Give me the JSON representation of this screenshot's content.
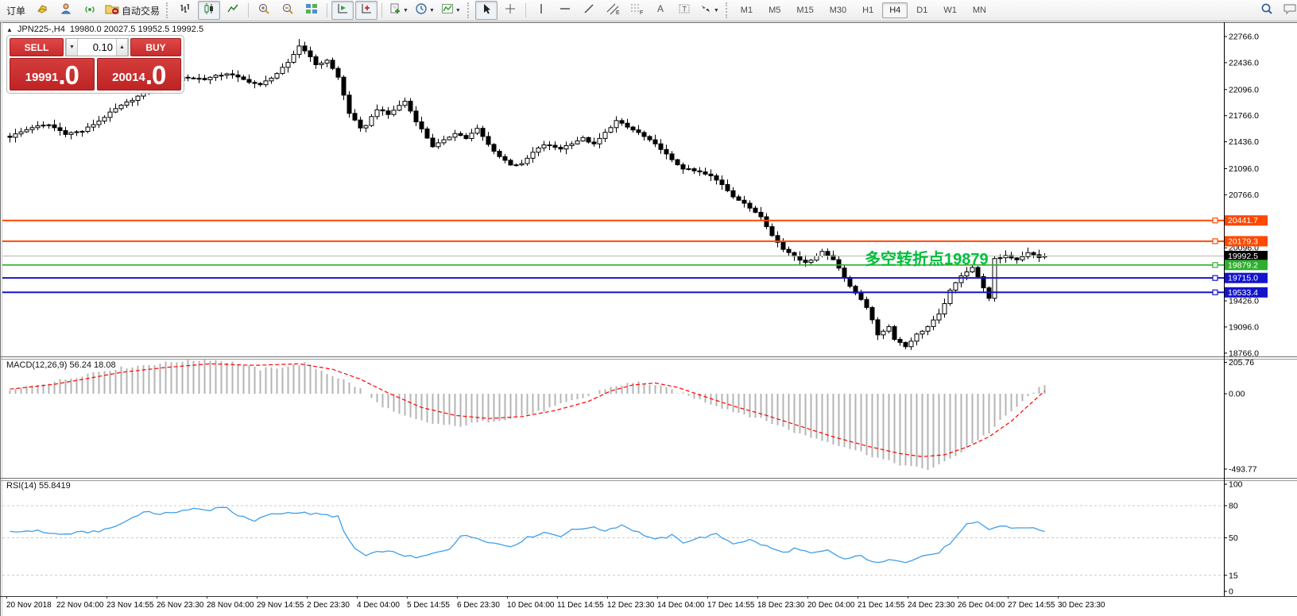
{
  "toolbar": {
    "new_order": "订单",
    "autotrading": "自动交易",
    "timeframes": [
      "M1",
      "M5",
      "M15",
      "M30",
      "H1",
      "H4",
      "D1",
      "W1",
      "MN"
    ],
    "active_timeframe": "H4"
  },
  "chart": {
    "symbol_period": "JPN225-,H4",
    "ohlc_line": "19980.0 20027.5 19952.5 19992.5",
    "macd_label": "MACD(12,26,9) 56.24 18.08",
    "rsi_label": "RSI(14) 55.8419",
    "annotation": {
      "text": "多空转折点19879",
      "color": "#00bf3c"
    }
  },
  "trade_panel": {
    "sell_label": "SELL",
    "buy_label": "BUY",
    "volume": "0.10",
    "sell_price_small": "19991",
    "sell_price_big": ".0",
    "buy_price_small": "20014",
    "buy_price_big": ".0"
  },
  "chart_data": {
    "type": "candlestick",
    "title": "JPN225-,H4",
    "current_bar": {
      "open": 19980.0,
      "high": 20027.5,
      "low": 19952.5,
      "close": 19992.5
    },
    "bid": 19991.0,
    "ask": 20014.0,
    "candle_count": 187,
    "y_ticks": [
      22766.0,
      22436.0,
      22096.0,
      21766.0,
      21436.0,
      21096.0,
      20766.0,
      20096.0,
      19426.0,
      19096.0,
      18766.0
    ],
    "price_lines": [
      {
        "price": 20441.7,
        "label": "20441.7",
        "color": "#ff4800",
        "width": 2,
        "handle": true
      },
      {
        "price": 20179.3,
        "label": "20179.3",
        "color": "#ff4800",
        "width": 2,
        "handle": true
      },
      {
        "price": 19992.5,
        "label": "19992.5",
        "color": "#000000",
        "line_color": "#b8b8b8",
        "width": 1,
        "handle": false
      },
      {
        "price": 19879.2,
        "label": "19879.2",
        "color": "#2fae2f",
        "width": 1.6,
        "handle": true
      },
      {
        "price": 19715.0,
        "label": "19715.0",
        "color": "#1414cc",
        "width": 2,
        "handle": true
      },
      {
        "price": 19533.4,
        "label": "19533.4",
        "color": "#1414cc",
        "width": 2,
        "handle": true
      }
    ],
    "x_labels": [
      "20 Nov 2018",
      "22 Nov 04:00",
      "23 Nov 14:55",
      "26 Nov 23:30",
      "28 Nov 04:00",
      "29 Nov 14:55",
      "2 Dec 23:30",
      "4 Dec 04:00",
      "5 Dec 14:55",
      "6 Dec 23:30",
      "10 Dec 04:00",
      "11 Dec 14:55",
      "12 Dec 23:30",
      "14 Dec 04:00",
      "17 Dec 14:55",
      "18 Dec 23:30",
      "20 Dec 04:00",
      "21 Dec 14:55",
      "24 Dec 23:30",
      "26 Dec 04:00",
      "27 Dec 14:55",
      "30 Dec 23:30"
    ],
    "close_anchors": [
      [
        0,
        21500
      ],
      [
        4,
        21620
      ],
      [
        7,
        21650
      ],
      [
        10,
        21540
      ],
      [
        13,
        21570
      ],
      [
        16,
        21700
      ],
      [
        19,
        21850
      ],
      [
        24,
        22050
      ],
      [
        28,
        22140
      ],
      [
        31,
        22250
      ],
      [
        35,
        22230
      ],
      [
        39,
        22300
      ],
      [
        42,
        22220
      ],
      [
        45,
        22150
      ],
      [
        48,
        22300
      ],
      [
        50,
        22430
      ],
      [
        52,
        22650
      ],
      [
        54,
        22520
      ],
      [
        55,
        22400
      ],
      [
        57,
        22470
      ],
      [
        59,
        22250
      ],
      [
        61,
        21800
      ],
      [
        63,
        21600
      ],
      [
        64,
        21650
      ],
      [
        66,
        21850
      ],
      [
        68,
        21780
      ],
      [
        71,
        21950
      ],
      [
        73,
        21700
      ],
      [
        76,
        21380
      ],
      [
        78,
        21450
      ],
      [
        80,
        21550
      ],
      [
        82,
        21480
      ],
      [
        84,
        21600
      ],
      [
        86,
        21400
      ],
      [
        88,
        21250
      ],
      [
        90,
        21150
      ],
      [
        92,
        21150
      ],
      [
        94,
        21300
      ],
      [
        96,
        21400
      ],
      [
        99,
        21350
      ],
      [
        101,
        21420
      ],
      [
        103,
        21480
      ],
      [
        105,
        21400
      ],
      [
        107,
        21550
      ],
      [
        109,
        21700
      ],
      [
        111,
        21620
      ],
      [
        113,
        21550
      ],
      [
        115,
        21450
      ],
      [
        117,
        21350
      ],
      [
        119,
        21200
      ],
      [
        121,
        21100
      ],
      [
        124,
        21050
      ],
      [
        126,
        21000
      ],
      [
        128,
        20900
      ],
      [
        130,
        20750
      ],
      [
        133,
        20600
      ],
      [
        135,
        20500
      ],
      [
        137,
        20250
      ],
      [
        139,
        20080
      ],
      [
        141,
        20000
      ],
      [
        143,
        19900
      ],
      [
        144,
        19950
      ],
      [
        146,
        20050
      ],
      [
        148,
        19950
      ],
      [
        149,
        19850
      ],
      [
        151,
        19600
      ],
      [
        153,
        19450
      ],
      [
        154,
        19350
      ],
      [
        156,
        19000
      ],
      [
        158,
        19100
      ],
      [
        159,
        18950
      ],
      [
        161,
        18850
      ],
      [
        163,
        19000
      ],
      [
        165,
        19100
      ],
      [
        167,
        19250
      ],
      [
        169,
        19550
      ],
      [
        171,
        19750
      ],
      [
        173,
        19850
      ],
      [
        175,
        19600
      ],
      [
        176,
        19450
      ],
      [
        177,
        19950
      ],
      [
        179,
        20000
      ],
      [
        181,
        19950
      ],
      [
        183,
        20030
      ],
      [
        185,
        19980
      ],
      [
        186,
        19992.5
      ]
    ],
    "indicators": {
      "macd": {
        "name": "MACD",
        "params": [
          12,
          26,
          9
        ],
        "macd_value": 56.24,
        "signal_value": 18.08,
        "scale_labels": [
          "205.76",
          "0.00",
          "-493.77"
        ],
        "scale_values": [
          205.76,
          0.0,
          -493.77
        ],
        "hist_color": "#b4b4b4",
        "signal_color": "#ff0000",
        "hist_anchors": [
          [
            0,
            20
          ],
          [
            5,
            60
          ],
          [
            10,
            95
          ],
          [
            15,
            140
          ],
          [
            20,
            170
          ],
          [
            26,
            195
          ],
          [
            31,
            215
          ],
          [
            36,
            225
          ],
          [
            40,
            205
          ],
          [
            45,
            160
          ],
          [
            50,
            180
          ],
          [
            53,
            200
          ],
          [
            56,
            150
          ],
          [
            60,
            90
          ],
          [
            63,
            30
          ],
          [
            66,
            -60
          ],
          [
            70,
            -140
          ],
          [
            75,
            -190
          ],
          [
            80,
            -215
          ],
          [
            85,
            -185
          ],
          [
            90,
            -160
          ],
          [
            95,
            -120
          ],
          [
            100,
            -60
          ],
          [
            104,
            -15
          ],
          [
            107,
            35
          ],
          [
            110,
            60
          ],
          [
            113,
            75
          ],
          [
            116,
            55
          ],
          [
            119,
            25
          ],
          [
            122,
            -15
          ],
          [
            126,
            -65
          ],
          [
            130,
            -115
          ],
          [
            134,
            -155
          ],
          [
            138,
            -205
          ],
          [
            142,
            -265
          ],
          [
            146,
            -305
          ],
          [
            150,
            -345
          ],
          [
            154,
            -395
          ],
          [
            158,
            -445
          ],
          [
            162,
            -480
          ],
          [
            165,
            -495
          ],
          [
            168,
            -450
          ],
          [
            171,
            -380
          ],
          [
            174,
            -300
          ],
          [
            176,
            -255
          ],
          [
            178,
            -180
          ],
          [
            180,
            -115
          ],
          [
            182,
            -55
          ],
          [
            184,
            15
          ],
          [
            186,
            56.24
          ]
        ],
        "signal_anchors": [
          [
            0,
            30
          ],
          [
            8,
            62
          ],
          [
            14,
            100
          ],
          [
            20,
            140
          ],
          [
            28,
            172
          ],
          [
            36,
            196
          ],
          [
            44,
            186
          ],
          [
            52,
            196
          ],
          [
            58,
            160
          ],
          [
            63,
            95
          ],
          [
            68,
            5
          ],
          [
            74,
            -90
          ],
          [
            80,
            -142
          ],
          [
            86,
            -162
          ],
          [
            92,
            -150
          ],
          [
            98,
            -110
          ],
          [
            104,
            -50
          ],
          [
            108,
            18
          ],
          [
            112,
            58
          ],
          [
            116,
            70
          ],
          [
            120,
            42
          ],
          [
            124,
            -8
          ],
          [
            130,
            -80
          ],
          [
            136,
            -142
          ],
          [
            142,
            -212
          ],
          [
            148,
            -282
          ],
          [
            154,
            -342
          ],
          [
            160,
            -392
          ],
          [
            164,
            -412
          ],
          [
            168,
            -400
          ],
          [
            172,
            -350
          ],
          [
            176,
            -282
          ],
          [
            180,
            -180
          ],
          [
            183,
            -80
          ],
          [
            186,
            18.08
          ]
        ]
      },
      "rsi": {
        "name": "RSI",
        "period": 14,
        "value": 55.8419,
        "levels": [
          100,
          80,
          50,
          15,
          0
        ],
        "dashed_levels": [
          80,
          50,
          15
        ],
        "color": "#3f9ee8",
        "anchors": [
          [
            0,
            55
          ],
          [
            4,
            57
          ],
          [
            9,
            53
          ],
          [
            13,
            55
          ],
          [
            17,
            57
          ],
          [
            20,
            63
          ],
          [
            23,
            72
          ],
          [
            25,
            75
          ],
          [
            27,
            71
          ],
          [
            29,
            74
          ],
          [
            33,
            77
          ],
          [
            36,
            75
          ],
          [
            37,
            79
          ],
          [
            39,
            78
          ],
          [
            41,
            71
          ],
          [
            44,
            65
          ],
          [
            46,
            71
          ],
          [
            49,
            73
          ],
          [
            51,
            74
          ],
          [
            55,
            72
          ],
          [
            59,
            70
          ],
          [
            60,
            55
          ],
          [
            62,
            40
          ],
          [
            64,
            33
          ],
          [
            67,
            38
          ],
          [
            70,
            35
          ],
          [
            73,
            31
          ],
          [
            76,
            35
          ],
          [
            79,
            40
          ],
          [
            81,
            52
          ],
          [
            84,
            50
          ],
          [
            87,
            45
          ],
          [
            90,
            42
          ],
          [
            93,
            50
          ],
          [
            96,
            55
          ],
          [
            99,
            52
          ],
          [
            101,
            57
          ],
          [
            104,
            60
          ],
          [
            107,
            57
          ],
          [
            110,
            62
          ],
          [
            113,
            55
          ],
          [
            116,
            48
          ],
          [
            119,
            52
          ],
          [
            121,
            46
          ],
          [
            124,
            50
          ],
          [
            127,
            53
          ],
          [
            130,
            45
          ],
          [
            133,
            48
          ],
          [
            136,
            42
          ],
          [
            139,
            36
          ],
          [
            141,
            40
          ],
          [
            144,
            35
          ],
          [
            147,
            38
          ],
          [
            150,
            30
          ],
          [
            153,
            33
          ],
          [
            156,
            26
          ],
          [
            159,
            30
          ],
          [
            161,
            28
          ],
          [
            164,
            33
          ],
          [
            167,
            36
          ],
          [
            170,
            50
          ],
          [
            172,
            62
          ],
          [
            174,
            64
          ],
          [
            176,
            58
          ],
          [
            178,
            61
          ],
          [
            181,
            59
          ],
          [
            183,
            60
          ],
          [
            186,
            55.84
          ]
        ]
      }
    }
  }
}
